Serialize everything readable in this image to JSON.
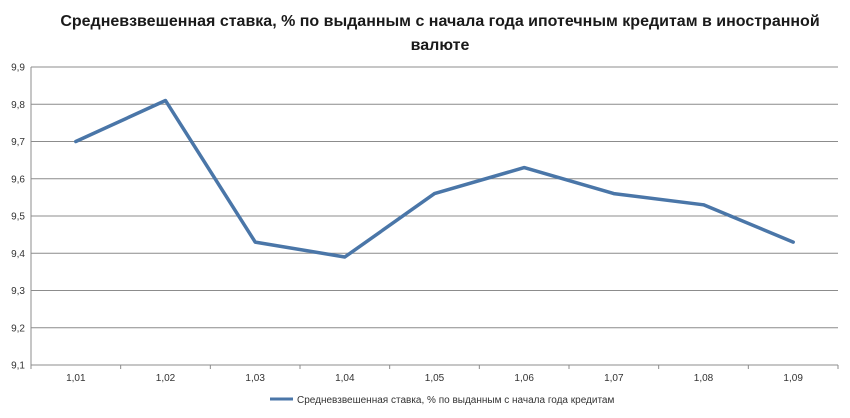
{
  "chart_data": {
    "type": "line",
    "title": "Средневзвешенная ставка, % по выданным с начала года ипотечным кредитам в иностранной валюте",
    "categories": [
      "1,01",
      "1,02",
      "1,03",
      "1,04",
      "1,05",
      "1,06",
      "1,07",
      "1,08",
      "1,09"
    ],
    "series": [
      {
        "name": "Средневзвешенная ставка, % по выданным с начала года кредитам",
        "values": [
          9.7,
          9.81,
          9.43,
          9.39,
          9.56,
          9.63,
          9.56,
          9.53,
          9.43
        ],
        "color": "#4a76a8"
      }
    ],
    "y_ticks": [
      "9,1",
      "9,2",
      "9,3",
      "9,4",
      "9,5",
      "9,6",
      "9,7",
      "9,8",
      "9,9"
    ],
    "ylim": [
      9.1,
      9.9
    ],
    "grid": true,
    "legend_position": "bottom"
  }
}
